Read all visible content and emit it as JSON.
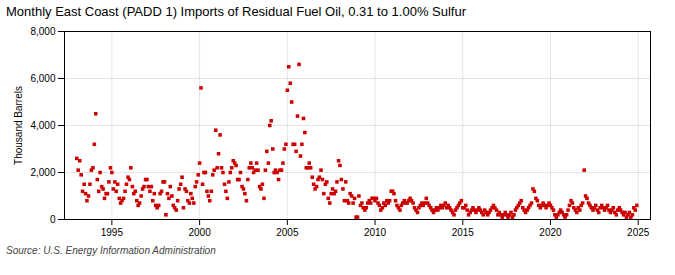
{
  "chart_data": {
    "type": "scatter",
    "title": "Monthly East Coast (PADD 1) Imports of Residual Fuel Oil, 0.31 to 1.00% Sulfur",
    "ylabel": "Thousand Barrels",
    "source": "Source: U.S. Energy Information Administration",
    "color": "#cc0000",
    "marker": "square",
    "grid": true,
    "xlim": [
      1992.3,
      2025.7
    ],
    "xticks": [
      1995,
      2000,
      2005,
      2010,
      2015,
      2020,
      2025
    ],
    "ylim": [
      0,
      8000
    ],
    "yticks": [
      0,
      {
        "value": 2000,
        "label": "2,000"
      },
      {
        "value": 4000,
        "label": "4,000"
      },
      {
        "value": 6000,
        "label": "6,000"
      },
      {
        "value": 8000,
        "label": "8,000"
      }
    ],
    "x": [
      1993.0,
      1993.08,
      1993.17,
      1993.25,
      1993.33,
      1993.42,
      1993.5,
      1993.58,
      1993.67,
      1993.75,
      1993.83,
      1993.92,
      1994.0,
      1994.08,
      1994.17,
      1994.25,
      1994.33,
      1994.42,
      1994.5,
      1994.58,
      1994.67,
      1994.75,
      1994.83,
      1994.92,
      1995.0,
      1995.08,
      1995.17,
      1995.25,
      1995.33,
      1995.42,
      1995.5,
      1995.58,
      1995.67,
      1995.75,
      1995.83,
      1995.92,
      1996.0,
      1996.08,
      1996.17,
      1996.25,
      1996.33,
      1996.42,
      1996.5,
      1996.58,
      1996.67,
      1996.75,
      1996.83,
      1996.92,
      1997.0,
      1997.08,
      1997.17,
      1997.25,
      1997.33,
      1997.42,
      1997.5,
      1997.58,
      1997.67,
      1997.75,
      1997.83,
      1997.92,
      1998.0,
      1998.08,
      1998.17,
      1998.25,
      1998.33,
      1998.42,
      1998.5,
      1998.58,
      1998.67,
      1998.75,
      1998.83,
      1998.92,
      1999.0,
      1999.08,
      1999.17,
      1999.25,
      1999.33,
      1999.42,
      1999.5,
      1999.58,
      1999.67,
      1999.75,
      1999.83,
      1999.92,
      2000.0,
      2000.08,
      2000.17,
      2000.25,
      2000.33,
      2000.42,
      2000.5,
      2000.58,
      2000.67,
      2000.75,
      2000.83,
      2000.92,
      2001.0,
      2001.08,
      2001.17,
      2001.25,
      2001.33,
      2001.42,
      2001.5,
      2001.58,
      2001.67,
      2001.75,
      2001.83,
      2001.92,
      2002.0,
      2002.08,
      2002.17,
      2002.25,
      2002.33,
      2002.42,
      2002.5,
      2002.58,
      2002.67,
      2002.75,
      2002.83,
      2002.92,
      2003.0,
      2003.08,
      2003.17,
      2003.25,
      2003.33,
      2003.42,
      2003.5,
      2003.58,
      2003.67,
      2003.75,
      2003.83,
      2003.92,
      2004.0,
      2004.08,
      2004.17,
      2004.25,
      2004.33,
      2004.42,
      2004.5,
      2004.58,
      2004.67,
      2004.75,
      2004.83,
      2004.92,
      2005.0,
      2005.08,
      2005.17,
      2005.25,
      2005.33,
      2005.42,
      2005.5,
      2005.58,
      2005.67,
      2005.75,
      2005.83,
      2005.92,
      2006.0,
      2006.08,
      2006.17,
      2006.25,
      2006.33,
      2006.42,
      2006.5,
      2006.58,
      2006.67,
      2006.75,
      2006.83,
      2006.92,
      2007.0,
      2007.08,
      2007.17,
      2007.25,
      2007.33,
      2007.42,
      2007.5,
      2007.58,
      2007.67,
      2007.75,
      2007.83,
      2007.92,
      2008.0,
      2008.08,
      2008.17,
      2008.25,
      2008.33,
      2008.42,
      2008.5,
      2008.58,
      2008.67,
      2008.75,
      2008.83,
      2008.92,
      2009.0,
      2009.08,
      2009.17,
      2009.25,
      2009.33,
      2009.42,
      2009.5,
      2009.58,
      2009.67,
      2009.75,
      2009.83,
      2009.92,
      2010.0,
      2010.08,
      2010.17,
      2010.25,
      2010.33,
      2010.42,
      2010.5,
      2010.58,
      2010.67,
      2010.75,
      2010.83,
      2010.92,
      2011.0,
      2011.08,
      2011.17,
      2011.25,
      2011.33,
      2011.42,
      2011.5,
      2011.58,
      2011.67,
      2011.75,
      2011.83,
      2011.92,
      2012.0,
      2012.08,
      2012.17,
      2012.25,
      2012.33,
      2012.42,
      2012.5,
      2012.58,
      2012.67,
      2012.75,
      2012.83,
      2012.92,
      2013.0,
      2013.08,
      2013.17,
      2013.25,
      2013.33,
      2013.42,
      2013.5,
      2013.58,
      2013.67,
      2013.75,
      2013.83,
      2013.92,
      2014.0,
      2014.08,
      2014.17,
      2014.25,
      2014.33,
      2014.42,
      2014.5,
      2014.58,
      2014.67,
      2014.75,
      2014.83,
      2014.92,
      2015.0,
      2015.08,
      2015.17,
      2015.25,
      2015.33,
      2015.42,
      2015.5,
      2015.58,
      2015.67,
      2015.75,
      2015.83,
      2015.92,
      2016.0,
      2016.08,
      2016.17,
      2016.25,
      2016.33,
      2016.42,
      2016.5,
      2016.58,
      2016.67,
      2016.75,
      2016.83,
      2016.92,
      2017.0,
      2017.08,
      2017.17,
      2017.25,
      2017.33,
      2017.42,
      2017.5,
      2017.58,
      2017.67,
      2017.75,
      2017.83,
      2017.92,
      2018.0,
      2018.08,
      2018.17,
      2018.25,
      2018.33,
      2018.42,
      2018.5,
      2018.58,
      2018.67,
      2018.75,
      2018.83,
      2018.92,
      2019.0,
      2019.08,
      2019.17,
      2019.25,
      2019.33,
      2019.42,
      2019.5,
      2019.58,
      2019.67,
      2019.75,
      2019.83,
      2019.92,
      2020.0,
      2020.08,
      2020.17,
      2020.25,
      2020.33,
      2020.42,
      2020.5,
      2020.58,
      2020.67,
      2020.75,
      2020.83,
      2020.92,
      2021.0,
      2021.08,
      2021.17,
      2021.25,
      2021.33,
      2021.42,
      2021.5,
      2021.58,
      2021.67,
      2021.75,
      2021.83,
      2021.92,
      2022.0,
      2022.08,
      2022.17,
      2022.25,
      2022.33,
      2022.42,
      2022.5,
      2022.58,
      2022.67,
      2022.75,
      2022.83,
      2022.92,
      2023.0,
      2023.08,
      2023.17,
      2023.25,
      2023.33,
      2023.42,
      2023.5,
      2023.58,
      2023.67,
      2023.75,
      2023.83,
      2023.92,
      2024.0,
      2024.08,
      2024.17,
      2024.25,
      2024.33,
      2024.42,
      2024.5,
      2024.58,
      2024.67,
      2024.75,
      2024.83,
      2024.92
    ],
    "values": [
      2600,
      2100,
      2500,
      1900,
      1200,
      1500,
      1100,
      800,
      1000,
      1500,
      2100,
      2200,
      3200,
      4500,
      1700,
      1200,
      2000,
      1400,
      1300,
      900,
      1100,
      1100,
      1600,
      2200,
      2000,
      1300,
      1600,
      1200,
      1500,
      900,
      700,
      800,
      900,
      1200,
      1500,
      1800,
      1700,
      2200,
      1400,
      1100,
      1200,
      800,
      600,
      700,
      1000,
      1300,
      1400,
      1700,
      1700,
      1400,
      1200,
      1400,
      800,
      1100,
      600,
      500,
      600,
      1100,
      1200,
      1600,
      1600,
      200,
      1100,
      900,
      1400,
      1000,
      600,
      500,
      400,
      800,
      1300,
      1500,
      1800,
      500,
      1300,
      1200,
      800,
      700,
      1100,
      900,
      700,
      1400,
      1600,
      1900,
      2400,
      5600,
      1500,
      2000,
      2000,
      1200,
      1000,
      800,
      1200,
      1900,
      2100,
      3800,
      2200,
      2800,
      3600,
      2200,
      2000,
      1500,
      1200,
      900,
      1600,
      2000,
      2200,
      2500,
      2400,
      2300,
      1700,
      1700,
      2000,
      1400,
      1300,
      1100,
      800,
      1700,
      2200,
      2400,
      2200,
      2000,
      2100,
      2400,
      2100,
      1400,
      1300,
      1500,
      900,
      2100,
      2900,
      2400,
      4000,
      4200,
      3000,
      2000,
      2100,
      2000,
      1700,
      2100,
      2100,
      2400,
      3000,
      3200,
      5500,
      6500,
      5800,
      5000,
      3200,
      3200,
      2900,
      4400,
      6600,
      2700,
      3200,
      4300,
      3700,
      2200,
      2200,
      2400,
      2200,
      1800,
      1500,
      1300,
      1400,
      1700,
      1800,
      2100,
      1700,
      1100,
      1500,
      1600,
      900,
      700,
      1100,
      1300,
      1100,
      1200,
      1600,
      2500,
      2300,
      1700,
      1300,
      800,
      1600,
      800,
      700,
      1100,
      1000,
      700,
      900,
      100,
      100,
      1000,
      600,
      700,
      500,
      400,
      500,
      700,
      800,
      700,
      900,
      900,
      800,
      900,
      700,
      600,
      400,
      500,
      700,
      600,
      800,
      700,
      800,
      1200,
      1200,
      1100,
      800,
      600,
      500,
      400,
      600,
      700,
      800,
      700,
      700,
      800,
      900,
      800,
      700,
      500,
      400,
      300,
      500,
      600,
      700,
      600,
      700,
      900,
      700,
      600,
      500,
      400,
      300,
      400,
      500,
      400,
      500,
      600,
      500,
      600,
      700,
      500,
      600,
      500,
      400,
      300,
      200,
      400,
      500,
      600,
      700,
      800,
      500,
      500,
      600,
      400,
      200,
      300,
      400,
      500,
      400,
      300,
      400,
      500,
      400,
      300,
      200,
      400,
      300,
      200,
      300,
      400,
      500,
      600,
      500,
      400,
      200,
      300,
      200,
      100,
      200,
      300,
      200,
      100,
      200,
      300,
      100,
      200,
      400,
      500,
      600,
      700,
      800,
      500,
      400,
      300,
      400,
      500,
      600,
      700,
      1300,
      1200,
      900,
      800,
      600,
      500,
      600,
      700,
      600,
      500,
      600,
      700,
      600,
      500,
      400,
      200,
      100,
      200,
      300,
      400,
      300,
      200,
      100,
      200,
      400,
      600,
      800,
      700,
      500,
      400,
      300,
      500,
      400,
      600,
      700,
      2100,
      1000,
      900,
      700,
      600,
      500,
      400,
      500,
      600,
      400,
      300,
      500,
      600,
      500,
      400,
      500,
      600,
      400,
      300,
      400,
      500,
      300,
      200,
      400,
      500,
      400,
      300,
      200,
      300,
      100,
      200,
      300,
      100,
      200,
      500,
      400,
      600
    ]
  }
}
